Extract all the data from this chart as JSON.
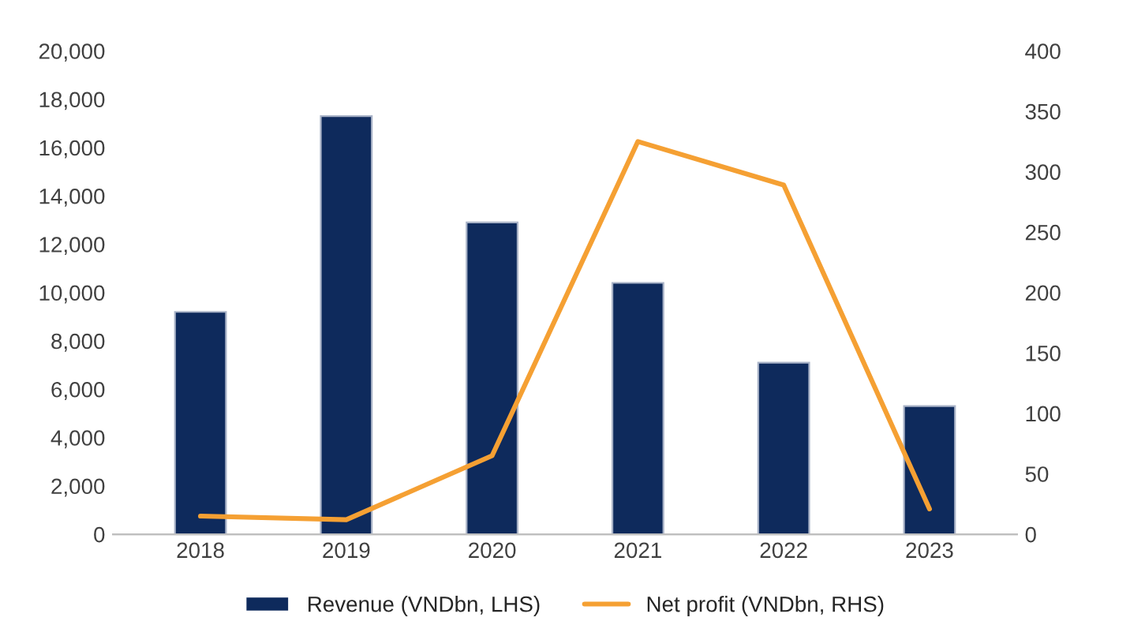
{
  "chart_data": {
    "type": "bar",
    "categories": [
      "2018",
      "2019",
      "2020",
      "2021",
      "2022",
      "2023"
    ],
    "series": [
      {
        "name": "Revenue (VNDbn, LHS)",
        "color": "#0e2a5c",
        "values": [
          9200,
          17300,
          12900,
          10400,
          7100,
          5300
        ]
      },
      {
        "name": "Net profit (VNDbn, RHS)",
        "type": "line",
        "axis": "y2",
        "color": "#f5a033",
        "values": [
          15,
          12,
          65,
          325,
          289,
          21
        ]
      }
    ],
    "ylim": [
      0,
      20000
    ],
    "yticks": [
      {
        "value": 0,
        "label": "0"
      },
      {
        "value": 2000,
        "label": "2,000"
      },
      {
        "value": 4000,
        "label": "4,000"
      },
      {
        "value": 6000,
        "label": "6,000"
      },
      {
        "value": 8000,
        "label": "8,000"
      },
      {
        "value": 10000,
        "label": "10,000"
      },
      {
        "value": 12000,
        "label": "12,000"
      },
      {
        "value": 14000,
        "label": "14,000"
      },
      {
        "value": 16000,
        "label": "16,000"
      },
      {
        "value": 18000,
        "label": "18,000"
      },
      {
        "value": 20000,
        "label": "20,000"
      }
    ],
    "y2lim": [
      0,
      400
    ],
    "y2ticks": [
      0,
      50,
      100,
      150,
      200,
      250,
      300,
      350,
      400
    ],
    "grid": false,
    "legend": "bottom"
  }
}
